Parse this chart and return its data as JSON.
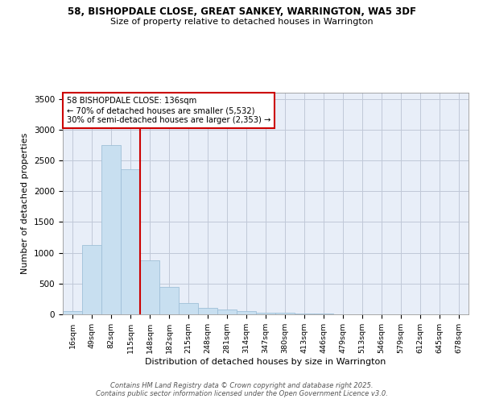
{
  "title1": "58, BISHOPDALE CLOSE, GREAT SANKEY, WARRINGTON, WA5 3DF",
  "title2": "Size of property relative to detached houses in Warrington",
  "xlabel": "Distribution of detached houses by size in Warrington",
  "ylabel": "Number of detached properties",
  "categories": [
    "16sqm",
    "49sqm",
    "82sqm",
    "115sqm",
    "148sqm",
    "182sqm",
    "215sqm",
    "248sqm",
    "281sqm",
    "314sqm",
    "347sqm",
    "380sqm",
    "413sqm",
    "446sqm",
    "479sqm",
    "513sqm",
    "546sqm",
    "579sqm",
    "612sqm",
    "645sqm",
    "678sqm"
  ],
  "values": [
    50,
    1120,
    2750,
    2350,
    880,
    440,
    185,
    110,
    75,
    55,
    30,
    20,
    12,
    8,
    5,
    4,
    3,
    2,
    2,
    1,
    1
  ],
  "bar_color": "#c8dff0",
  "bar_edge_color": "#a0c0d8",
  "bg_color": "#e8eef8",
  "grid_color": "#c0c8d8",
  "vline_index": 4,
  "vline_color": "#cc0000",
  "annotation_text": "58 BISHOPDALE CLOSE: 136sqm\n← 70% of detached houses are smaller (5,532)\n30% of semi-detached houses are larger (2,353) →",
  "annotation_box_color": "#ffffff",
  "annotation_box_edge": "#cc0000",
  "ylim": [
    0,
    3600
  ],
  "yticks": [
    0,
    500,
    1000,
    1500,
    2000,
    2500,
    3000,
    3500
  ],
  "footer1": "Contains HM Land Registry data © Crown copyright and database right 2025.",
  "footer2": "Contains public sector information licensed under the Open Government Licence v3.0."
}
